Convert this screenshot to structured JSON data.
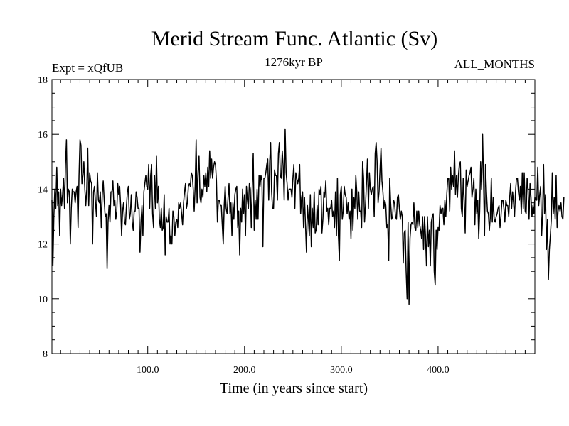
{
  "chart_data": {
    "type": "line",
    "title": "Merid Stream Func. Atlantic (Sv)",
    "subtitle_left": "Expt = xQfUB",
    "subtitle_center": "1276kyr BP",
    "subtitle_right": "ALL_MONTHS",
    "xlabel": "Time (in years since start)",
    "ylabel": "",
    "xlim": [
      1,
      500
    ],
    "ylim": [
      8,
      18
    ],
    "x_ticks": [
      100,
      200,
      300,
      400
    ],
    "x_tick_labels": [
      "100.0",
      "200.0",
      "300.0",
      "400.0"
    ],
    "y_ticks": [
      8,
      10,
      12,
      14,
      16,
      18
    ],
    "y_tick_labels": [
      "8",
      "10",
      "12",
      "14",
      "16",
      "18"
    ],
    "grid": false,
    "series": [
      {
        "name": "Merid Stream Func. Atlantic",
        "color": "#000000",
        "x_start": 1,
        "x_step": 1,
        "values": [
          13.6,
          11.2,
          13.0,
          14.0,
          13.3,
          14.8,
          13.4,
          13.9,
          12.3,
          14.0,
          13.4,
          13.8,
          14.4,
          13.3,
          14.9,
          15.8,
          13.5,
          14.0,
          13.9,
          12.0,
          13.3,
          14.0,
          13.9,
          13.9,
          13.5,
          13.9,
          14.1,
          12.6,
          14.5,
          15.8,
          15.6,
          14.2,
          14.5,
          15.0,
          14.0,
          13.4,
          14.0,
          15.5,
          13.4,
          14.6,
          14.3,
          14.2,
          12.0,
          13.9,
          14.1,
          13.5,
          13.0,
          14.6,
          13.6,
          13.5,
          13.9,
          12.6,
          13.8,
          14.3,
          13.6,
          13.0,
          13.1,
          11.1,
          12.8,
          13.4,
          12.8,
          13.9,
          13.9,
          14.3,
          13.4,
          13.6,
          12.9,
          13.2,
          14.2,
          13.8,
          14.1,
          13.4,
          12.3,
          13.2,
          13.5,
          12.8,
          12.7,
          13.4,
          13.9,
          14.1,
          12.9,
          13.1,
          13.8,
          12.8,
          12.5,
          13.2,
          13.2,
          13.9,
          13.7,
          13.3,
          13.3,
          11.7,
          12.8,
          13.4,
          12.3,
          13.9,
          14.2,
          14.5,
          14.1,
          14.0,
          14.9,
          13.3,
          14.5,
          14.9,
          13.1,
          12.6,
          14.5,
          13.3,
          15.2,
          13.5,
          14.1,
          12.9,
          12.6,
          13.3,
          12.5,
          12.6,
          13.8,
          11.6,
          13.0,
          12.8,
          12.8,
          13.3,
          12.0,
          12.3,
          12.0,
          13.2,
          13.0,
          12.3,
          12.8,
          12.9,
          12.6,
          13.5,
          13.3,
          13.5,
          13.1,
          12.7,
          13.5,
          13.9,
          14.2,
          13.3,
          13.5,
          14.1,
          14.2,
          14.1,
          14.6,
          14.5,
          14.0,
          13.2,
          14.1,
          15.8,
          13.5,
          14.6,
          15.2,
          13.7,
          13.5,
          14.0,
          13.7,
          14.5,
          14.1,
          14.6,
          13.9,
          14.8,
          14.1,
          15.4,
          14.4,
          15.1,
          14.4,
          14.8,
          15.0,
          14.9,
          14.3,
          12.8,
          13.6,
          13.6,
          13.4,
          13.4,
          12.7,
          12.0,
          13.4,
          14.1,
          13.3,
          13.1,
          13.7,
          14.2,
          13.1,
          13.5,
          12.3,
          13.5,
          12.9,
          13.8,
          14.0,
          14.1,
          12.6,
          13.2,
          11.6,
          13.3,
          12.8,
          14.0,
          13.1,
          13.8,
          12.3,
          14.1,
          13.6,
          13.3,
          14.2,
          14.0,
          12.6,
          14.1,
          15.3,
          12.5,
          13.6,
          12.9,
          14.0,
          12.9,
          14.5,
          14.1,
          14.5,
          14.3,
          11.9,
          14.4,
          14.4,
          14.6,
          14.9,
          15.1,
          13.6,
          15.0,
          15.7,
          13.9,
          13.3,
          13.3,
          14.7,
          14.5,
          14.5,
          13.6,
          15.3,
          15.7,
          14.5,
          14.4,
          15.4,
          14.8,
          13.6,
          16.2,
          14.6,
          14.2,
          13.6,
          14.0,
          14.0,
          14.0,
          13.7,
          14.4,
          14.9,
          13.3,
          14.6,
          14.4,
          14.2,
          14.4,
          14.9,
          13.1,
          13.7,
          13.9,
          12.6,
          13.7,
          12.7,
          11.7,
          13.4,
          12.9,
          12.3,
          13.8,
          11.9,
          13.3,
          12.6,
          13.9,
          12.4,
          12.5,
          13.4,
          12.7,
          14.0,
          13.8,
          14.1,
          12.4,
          12.9,
          13.9,
          13.7,
          14.3,
          13.2,
          13.3,
          12.7,
          13.3,
          13.3,
          13.6,
          13.0,
          13.2,
          12.6,
          13.9,
          12.3,
          14.4,
          12.3,
          11.4,
          13.8,
          14.1,
          12.9,
          13.2,
          14.1,
          13.8,
          13.7,
          13.1,
          13.5,
          12.9,
          13.2,
          12.2,
          14.0,
          12.5,
          13.7,
          13.3,
          14.5,
          13.9,
          12.9,
          13.9,
          13.2,
          13.2,
          12.6,
          15.0,
          14.4,
          12.8,
          13.4,
          14.2,
          15.1,
          13.3,
          14.6,
          14.0,
          13.8,
          14.0,
          14.1,
          13.0,
          15.3,
          15.7,
          15.0,
          13.5,
          13.9,
          14.7,
          15.5,
          14.3,
          13.9,
          13.3,
          13.6,
          13.4,
          12.6,
          12.7,
          11.4,
          14.4,
          13.5,
          12.9,
          13.0,
          13.6,
          13.5,
          13.0,
          12.9,
          13.7,
          13.8,
          13.3,
          12.9,
          13.2,
          13.0,
          11.3,
          12.4,
          12.5,
          11.0,
          10.0,
          12.8,
          9.8,
          12.2,
          12.7,
          12.8,
          12.7,
          13.5,
          12.6,
          12.5,
          13.2,
          12.6,
          13.2,
          12.7,
          12.5,
          12.2,
          13.0,
          11.8,
          13.0,
          12.3,
          11.2,
          13.0,
          11.9,
          12.5,
          11.2,
          12.8,
          13.0,
          13.1,
          11.0,
          10.5,
          12.5,
          11.8,
          12.6,
          12.5,
          13.4,
          13.1,
          13.3,
          13.3,
          12.7,
          13.6,
          13.0,
          13.8,
          14.4,
          14.4,
          13.2,
          14.8,
          14.0,
          14.5,
          14.1,
          15.4,
          13.8,
          14.5,
          13.7,
          14.5,
          14.9,
          15.0,
          13.3,
          13.0,
          14.4,
          13.6,
          12.4,
          14.7,
          14.1,
          14.3,
          14.5,
          14.6,
          14.8,
          13.7,
          14.0,
          14.4,
          12.7,
          14.0,
          13.1,
          13.6,
          12.2,
          13.2,
          15.0,
          14.0,
          16.0,
          14.3,
          12.3,
          14.9,
          13.9,
          13.2,
          13.1,
          12.5,
          13.0,
          14.4,
          12.8,
          13.7,
          12.9,
          12.8,
          13.0,
          13.1,
          13.3,
          13.4,
          12.6,
          13.0,
          13.6,
          13.6,
          13.3,
          12.8,
          13.6,
          13.4,
          13.4,
          13.0,
          13.7,
          14.2,
          13.3,
          13.9,
          13.5,
          13.0,
          13.9,
          14.4,
          14.4,
          13.9,
          13.6,
          14.1,
          13.1,
          14.6,
          13.3,
          14.6,
          13.2,
          13.1,
          14.4,
          14.0,
          12.9,
          14.2,
          13.7,
          13.0,
          13.4,
          13.1,
          13.7,
          13.6,
          13.6,
          14.8,
          13.4,
          13.8,
          14.1,
          12.3,
          13.1,
          14.9,
          13.1,
          13.8,
          11.8,
          12.9,
          10.7,
          11.8,
          12.3,
          12.9,
          14.6,
          13.1,
          13.7,
          12.9,
          14.5,
          12.6,
          13.2,
          13.4,
          13.2,
          13.5,
          13.0,
          12.9,
          13.7
        ]
      }
    ]
  }
}
